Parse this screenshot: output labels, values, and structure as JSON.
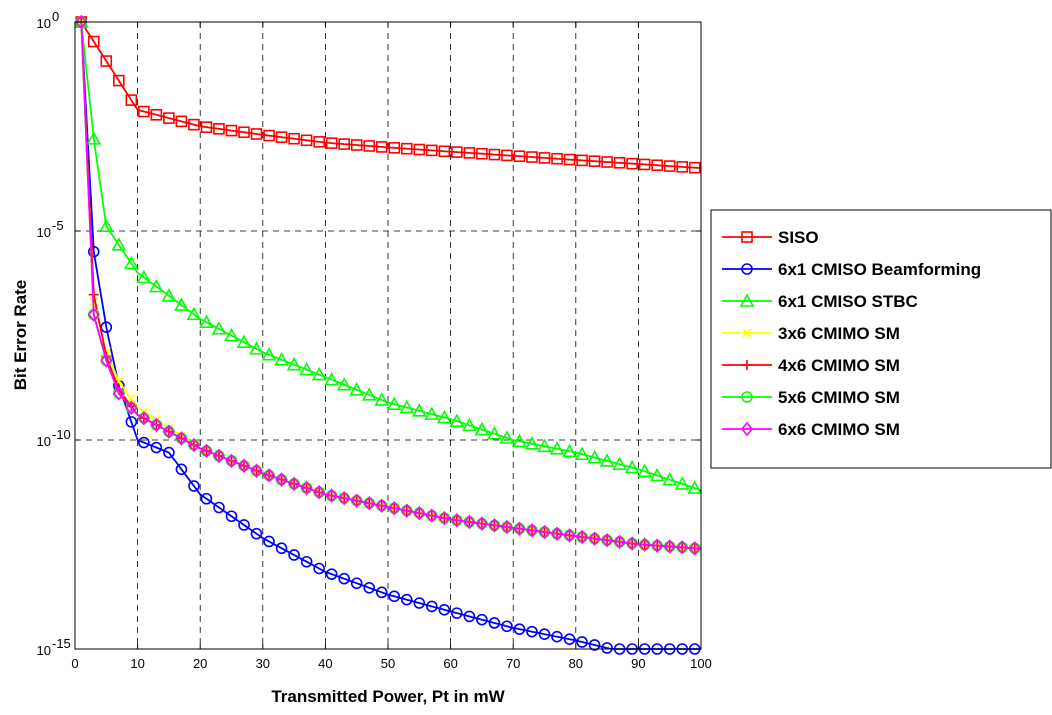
{
  "chart_data": {
    "type": "line",
    "title": "",
    "xlabel": "Transmitted Power, Pt in mW",
    "ylabel": "Bit Error Rate",
    "xlim": [
      0,
      100
    ],
    "ylim": [
      1e-15,
      1
    ],
    "yscale": "log",
    "grid": true,
    "legend_position": "right",
    "x_ticks": [
      "0",
      "10",
      "20",
      "30",
      "40",
      "50",
      "60",
      "70",
      "80",
      "90",
      "100"
    ],
    "y_ticks": [
      {
        "base": "10",
        "exp": "0"
      },
      {
        "base": "10",
        "exp": "-5"
      },
      {
        "base": "10",
        "exp": "-10"
      },
      {
        "base": "10",
        "exp": "-15"
      }
    ],
    "series": [
      {
        "name": "SISO",
        "color": "#ff0000",
        "marker": "square",
        "x": [
          1,
          10,
          20,
          30,
          40,
          50,
          60,
          70,
          80,
          90,
          100
        ],
        "y": [
          1,
          0.0079,
          0.0032,
          0.002,
          0.0013,
          0.001,
          0.00079,
          0.00063,
          0.0005,
          0.0004,
          0.00032
        ]
      },
      {
        "name": "6x1 CMISO Beamforming",
        "color": "#0000ff",
        "marker": "circle",
        "x": [
          1,
          3,
          5,
          7,
          10,
          15,
          20,
          30,
          40,
          50,
          60,
          70,
          80,
          90,
          100
        ],
        "y": [
          1,
          3.2e-06,
          5e-08,
          2e-09,
          1e-10,
          5e-11,
          5e-12,
          4.5e-13,
          7e-14,
          2e-14,
          7.9e-15,
          3.2e-15,
          1.6e-15,
          7e-16,
          2e-16
        ]
      },
      {
        "name": "6x1 CMISO STBC",
        "color": "#00ff00",
        "marker": "triangle",
        "x": [
          1,
          3,
          5,
          10,
          20,
          30,
          40,
          50,
          60,
          70,
          80,
          90,
          100
        ],
        "y": [
          1,
          0.0016,
          1.3e-05,
          1e-06,
          7.9e-08,
          1.26e-08,
          3.2e-09,
          7.9e-10,
          3.16e-10,
          1e-10,
          5e-11,
          2e-11,
          6.3e-12
        ]
      },
      {
        "name": "3x6 CMIMO SM",
        "color": "#ffff00",
        "marker": "x",
        "x": [
          1,
          3,
          5,
          7,
          10,
          20,
          30,
          40,
          50,
          60,
          70,
          80,
          90,
          100
        ],
        "y": [
          1,
          2e-07,
          1.3e-08,
          2.5e-09,
          6e-10,
          6.3e-11,
          1.6e-11,
          5e-12,
          2.5e-12,
          1.26e-12,
          7.9e-13,
          5e-13,
          3.2e-13,
          2.5e-13
        ]
      },
      {
        "name": "4x6 CMIMO SM",
        "color": "#ff0000",
        "marker": "plus",
        "x": [
          1,
          3,
          5,
          7,
          10,
          20,
          30,
          40,
          50,
          60,
          70,
          80,
          90,
          100
        ],
        "y": [
          1,
          3e-07,
          1e-08,
          1.6e-09,
          4e-10,
          6.3e-11,
          1.6e-11,
          5e-12,
          2.5e-12,
          1.26e-12,
          7.9e-13,
          5e-13,
          3.2e-13,
          2.5e-13
        ]
      },
      {
        "name": "5x6 CMIMO SM",
        "color": "#00ff00",
        "marker": "circle",
        "x": [
          1,
          3,
          5,
          7,
          10,
          20,
          30,
          40,
          50,
          60,
          70,
          80,
          90,
          100
        ],
        "y": [
          1,
          1e-07,
          8e-09,
          1.3e-09,
          4e-10,
          6.3e-11,
          1.6e-11,
          5e-12,
          2.5e-12,
          1.26e-12,
          7.9e-13,
          5e-13,
          3.2e-13,
          2.5e-13
        ]
      },
      {
        "name": "6x6 CMIMO SM",
        "color": "#ff00ff",
        "marker": "diamond",
        "x": [
          1,
          3,
          5,
          7,
          10,
          20,
          30,
          40,
          50,
          60,
          70,
          80,
          90,
          100
        ],
        "y": [
          1,
          1e-07,
          8e-09,
          1.3e-09,
          4e-10,
          6.3e-11,
          1.6e-11,
          5e-12,
          2.5e-12,
          1.26e-12,
          7.9e-13,
          5e-13,
          3.2e-13,
          2.5e-13
        ]
      }
    ]
  }
}
